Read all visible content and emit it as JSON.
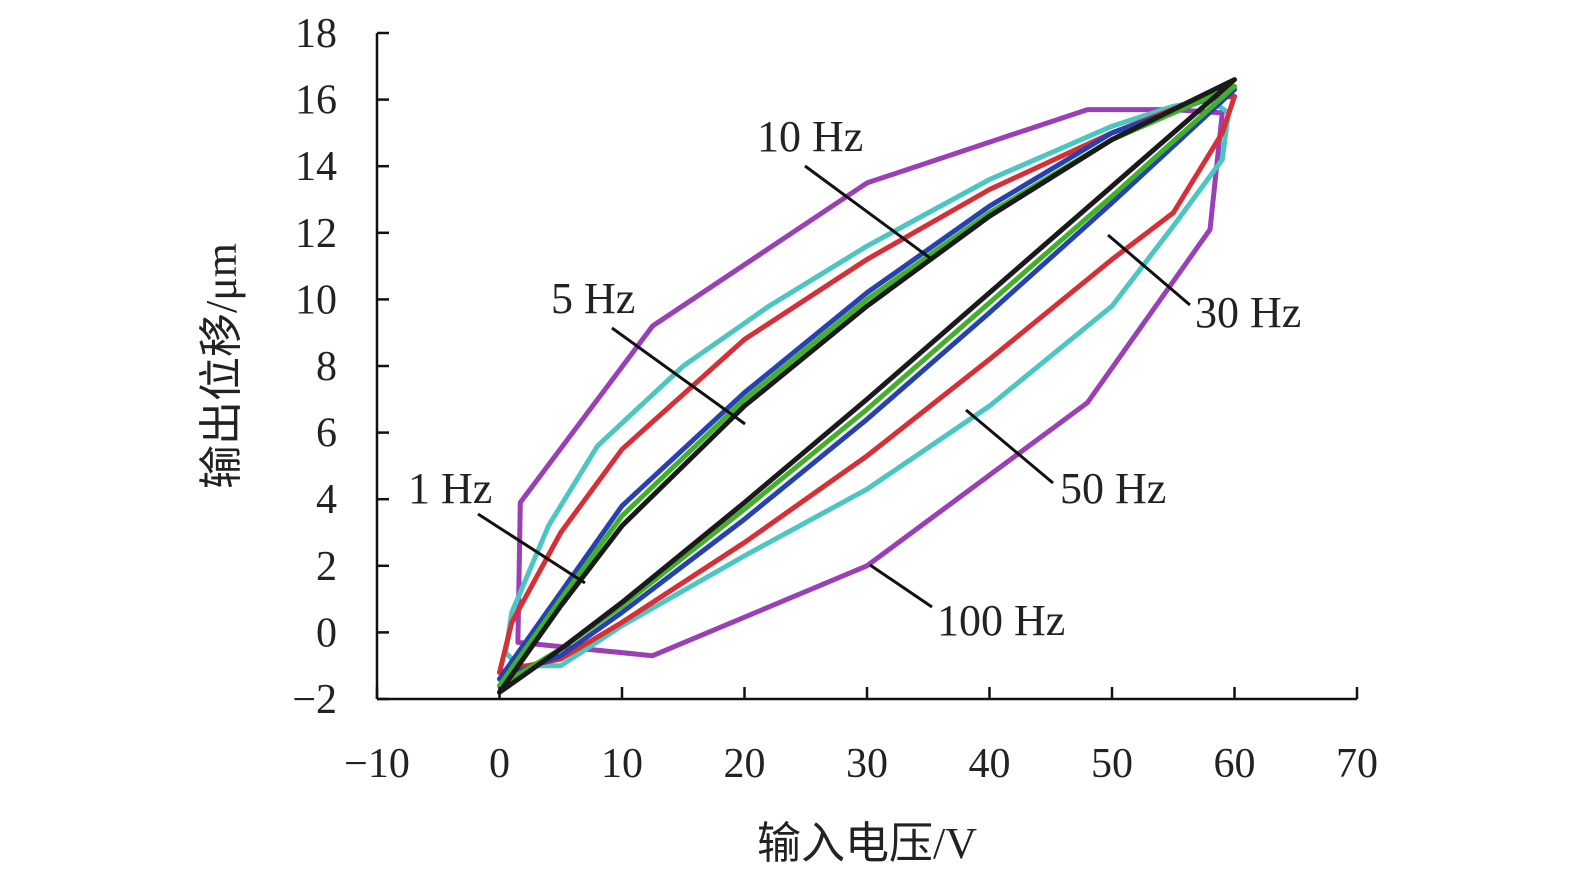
{
  "chart_data": {
    "type": "line",
    "title": "",
    "xlabel": "输入电压/V",
    "ylabel": "输出位移/μm",
    "xlim": [
      -10,
      70
    ],
    "ylim": [
      -2,
      18
    ],
    "xticks": [
      -10,
      0,
      10,
      20,
      30,
      40,
      50,
      60,
      70
    ],
    "yticks": [
      -2,
      0,
      2,
      4,
      6,
      8,
      10,
      12,
      14,
      16,
      18
    ],
    "xtick_labels": [
      "−10",
      "0",
      "10",
      "20",
      "30",
      "40",
      "50",
      "60",
      "70"
    ],
    "ytick_labels": [
      "−2",
      "0",
      "2",
      "4",
      "6",
      "8",
      "10",
      "12",
      "14",
      "16",
      "18"
    ],
    "grid": false,
    "legend": "none",
    "series": [
      {
        "name": "1 Hz",
        "color": "#1a1a1a",
        "x": [
          0,
          5,
          10,
          20,
          30,
          40,
          50,
          60,
          50,
          40,
          30,
          20,
          10,
          5,
          0
        ],
        "y": [
          -1.8,
          0.8,
          3.2,
          6.8,
          9.8,
          12.5,
          14.8,
          16.6,
          13.4,
          10.2,
          7.0,
          3.9,
          0.9,
          -0.5,
          -1.8
        ]
      },
      {
        "name": "5 Hz",
        "color": "#43b02a",
        "x": [
          0,
          5,
          10,
          20,
          30,
          40,
          50,
          60,
          50,
          40,
          30,
          20,
          10,
          5,
          0
        ],
        "y": [
          -1.6,
          1.0,
          3.5,
          7.0,
          10.0,
          12.6,
          14.8,
          16.4,
          13.1,
          9.9,
          6.7,
          3.7,
          0.8,
          -0.5,
          -1.6
        ]
      },
      {
        "name": "10 Hz",
        "color": "#2742b0",
        "x": [
          0,
          5,
          10,
          20,
          30,
          40,
          50,
          60,
          50,
          40,
          30,
          20,
          10,
          5,
          0
        ],
        "y": [
          -1.4,
          1.2,
          3.8,
          7.2,
          10.2,
          12.8,
          15.0,
          16.3,
          12.9,
          9.6,
          6.4,
          3.4,
          0.6,
          -0.7,
          -1.4
        ]
      },
      {
        "name": "30 Hz",
        "color": "#d72f35",
        "x": [
          0,
          1,
          5,
          10,
          20,
          30,
          40,
          50,
          57,
          60,
          59,
          55,
          50,
          40,
          30,
          20,
          10,
          5,
          1,
          0
        ],
        "y": [
          -1.2,
          0.3,
          3.0,
          5.5,
          8.8,
          11.2,
          13.3,
          15.0,
          16.0,
          16.1,
          15.0,
          12.6,
          11.2,
          8.2,
          5.3,
          2.7,
          0.3,
          -0.8,
          -1.1,
          -1.2
        ]
      },
      {
        "name": "50 Hz",
        "color": "#4cc6c2",
        "x": [
          0.5,
          1,
          4,
          8,
          15,
          22,
          30,
          40,
          50,
          55,
          58,
          59.5,
          59,
          55,
          50,
          40,
          30,
          20,
          10,
          5,
          1.5,
          0.5
        ],
        "y": [
          -0.6,
          0.6,
          3.2,
          5.6,
          8.0,
          9.8,
          11.6,
          13.6,
          15.2,
          15.8,
          16.0,
          15.6,
          14.2,
          12.2,
          9.8,
          6.8,
          4.3,
          2.3,
          0.2,
          -1.0,
          -1.0,
          -0.6
        ]
      },
      {
        "name": "100 Hz",
        "color": "#9a3fb5",
        "x": [
          1.5,
          1.7,
          12.5,
          30,
          48,
          55,
          59,
          58,
          58,
          48,
          30,
          12.5,
          1.5
        ],
        "y": [
          -0.3,
          3.9,
          9.2,
          13.5,
          15.7,
          15.7,
          15.6,
          12.1,
          12.1,
          6.9,
          2.0,
          -0.7,
          -0.3
        ]
      }
    ],
    "annotations": [
      {
        "text": "1 Hz",
        "points_to": "1 Hz"
      },
      {
        "text": "5 Hz",
        "points_to": "5 Hz"
      },
      {
        "text": "10 Hz",
        "points_to": "10 Hz"
      },
      {
        "text": "30 Hz",
        "points_to": "30 Hz"
      },
      {
        "text": "50 Hz",
        "points_to": "50 Hz"
      },
      {
        "text": "100 Hz",
        "points_to": "100 Hz"
      }
    ]
  }
}
